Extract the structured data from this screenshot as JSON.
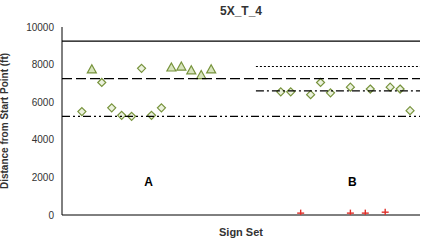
{
  "chart_data": {
    "type": "scatter",
    "title": "5X_T_4",
    "x_label": "Sign Set",
    "y_label": "Distance from Start Point (ft)",
    "xlim": [
      0,
      36
    ],
    "ylim": [
      0,
      10000
    ],
    "yticks": [
      0,
      2000,
      4000,
      6000,
      8000,
      10000
    ],
    "grid": false,
    "tick_labels": "y",
    "annotations": [
      {
        "text": "A",
        "x": 8.7,
        "y": 1700
      },
      {
        "text": "B",
        "x": 29.2,
        "y": 1700
      }
    ],
    "series": [
      {
        "type": "scatter",
        "marker": "diamond",
        "color": "#77933c",
        "x": [
          2,
          4,
          5,
          6,
          7,
          8,
          9,
          10,
          22,
          23,
          25,
          26,
          27,
          29,
          31,
          33,
          34,
          35
        ],
        "values": [
          5500,
          7050,
          5700,
          5300,
          5250,
          7800,
          5300,
          5700,
          6550,
          6550,
          6400,
          7050,
          6500,
          6800,
          6700,
          6800,
          6700,
          5550
        ]
      },
      {
        "type": "scatter",
        "marker": "triangle",
        "color": "#77933c",
        "x": [
          3,
          11,
          12,
          13,
          14,
          15
        ],
        "values": [
          7750,
          7850,
          7900,
          7700,
          7450,
          7750
        ]
      },
      {
        "type": "scatter",
        "marker": "plus",
        "color": "#e0302a",
        "x": [
          24,
          29,
          30.5,
          32.5
        ],
        "values": [
          100,
          100,
          100,
          150
        ]
      },
      {
        "type": "line",
        "line_style": "solid",
        "color": "#000000",
        "x": [
          0,
          36
        ],
        "values": [
          9250,
          9250
        ]
      },
      {
        "type": "line",
        "line_style": "dashed",
        "color": "#000000",
        "x": [
          0,
          36
        ],
        "values": [
          7250,
          7250
        ]
      },
      {
        "type": "line",
        "line_style": "dashdotdot",
        "color": "#000000",
        "x": [
          0,
          36
        ],
        "values": [
          5250,
          5250
        ]
      },
      {
        "type": "line",
        "line_style": "dotted",
        "color": "#000000",
        "x": [
          19.5,
          36
        ],
        "values": [
          7900,
          7900
        ]
      },
      {
        "type": "line",
        "line_style": "dashdot",
        "color": "#000000",
        "x": [
          19.5,
          36
        ],
        "values": [
          6600,
          6600
        ]
      }
    ]
  }
}
